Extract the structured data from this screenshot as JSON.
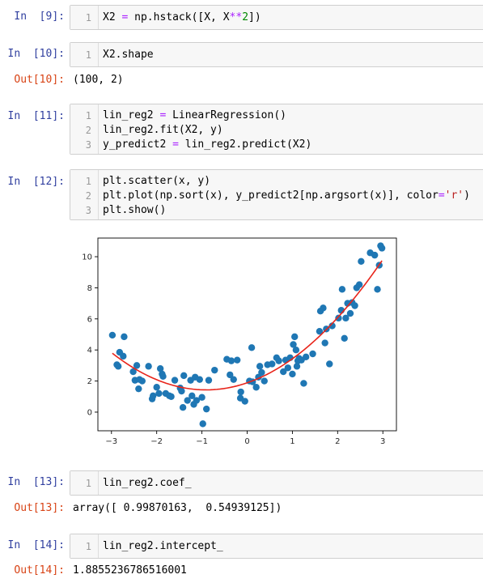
{
  "cells": [
    {
      "prompt": "In  [9]:",
      "lines": [
        {
          "num": "1",
          "tokens": [
            {
              "t": "X2 "
            },
            {
              "t": "=",
              "c": "op"
            },
            {
              "t": " np.hstack([X, X"
            },
            {
              "t": "**",
              "c": "op"
            },
            {
              "t": "2",
              "c": "num"
            },
            {
              "t": "])"
            }
          ]
        }
      ]
    },
    {
      "prompt": "In  [10]:",
      "lines": [
        {
          "num": "1",
          "tokens": [
            {
              "t": "X2.shape"
            }
          ]
        }
      ],
      "out_prompt": "Out[10]:",
      "output": "(100, 2)"
    },
    {
      "prompt": "In  [11]:",
      "lines": [
        {
          "num": "1",
          "tokens": [
            {
              "t": "lin_reg2 "
            },
            {
              "t": "=",
              "c": "op"
            },
            {
              "t": " LinearRegression()"
            }
          ]
        },
        {
          "num": "2",
          "tokens": [
            {
              "t": "lin_reg2.fit(X2, y)"
            }
          ]
        },
        {
          "num": "3",
          "tokens": [
            {
              "t": "y_predict2 "
            },
            {
              "t": "=",
              "c": "op"
            },
            {
              "t": " lin_reg2.predict(X2)"
            }
          ]
        }
      ]
    },
    {
      "prompt": "In  [12]:",
      "lines": [
        {
          "num": "1",
          "tokens": [
            {
              "t": "plt.scatter(x, y)"
            }
          ]
        },
        {
          "num": "2",
          "tokens": [
            {
              "t": "plt.plot(np.sort(x), y_predict2[np.argsort(x)], color"
            },
            {
              "t": "=",
              "c": "op"
            },
            {
              "t": "'r'",
              "c": "str"
            },
            {
              "t": ")"
            }
          ]
        },
        {
          "num": "3",
          "tokens": [
            {
              "t": "plt.show()"
            }
          ]
        }
      ]
    },
    {
      "prompt": "In  [13]:",
      "lines": [
        {
          "num": "1",
          "tokens": [
            {
              "t": "lin_reg2.coef_"
            }
          ]
        }
      ],
      "out_prompt": "Out[13]:",
      "output": "array([ 0.99870163,  0.54939125])"
    },
    {
      "prompt": "In  [14]:",
      "lines": [
        {
          "num": "1",
          "tokens": [
            {
              "t": "lin_reg2.intercept_"
            }
          ]
        }
      ],
      "out_prompt": "Out[14]:",
      "output": "1.8855236786516001"
    }
  ],
  "chart_data": {
    "type": "scatter",
    "xlim": [
      -3.3,
      3.3
    ],
    "ylim": [
      -1.2,
      11.2
    ],
    "xticks": [
      "−3",
      "−2",
      "−1",
      "0",
      "1",
      "2",
      "3"
    ],
    "yticks": [
      "0",
      "2",
      "4",
      "6",
      "8",
      "10"
    ],
    "grid": false,
    "scatter_color": "#1f77b4",
    "line_color": "#e8241a",
    "points": [
      [
        -2.98,
        4.95
      ],
      [
        -2.88,
        3.05
      ],
      [
        -2.85,
        2.95
      ],
      [
        -2.82,
        3.85
      ],
      [
        -2.74,
        3.6
      ],
      [
        -2.72,
        4.85
      ],
      [
        -2.52,
        2.6
      ],
      [
        -2.48,
        2.05
      ],
      [
        -2.44,
        3.0
      ],
      [
        -2.4,
        1.5
      ],
      [
        -2.38,
        2.1
      ],
      [
        -2.32,
        2.0
      ],
      [
        -2.18,
        2.95
      ],
      [
        -2.1,
        0.85
      ],
      [
        -2.08,
        1.05
      ],
      [
        -2.0,
        1.6
      ],
      [
        -1.95,
        1.2
      ],
      [
        -1.92,
        2.8
      ],
      [
        -1.88,
        2.45
      ],
      [
        -1.86,
        2.3
      ],
      [
        -1.8,
        1.2
      ],
      [
        -1.72,
        1.05
      ],
      [
        -1.68,
        1.0
      ],
      [
        -1.6,
        2.05
      ],
      [
        -1.48,
        1.55
      ],
      [
        -1.45,
        1.35
      ],
      [
        -1.42,
        0.3
      ],
      [
        -1.4,
        2.35
      ],
      [
        -1.32,
        0.75
      ],
      [
        -1.25,
        2.05
      ],
      [
        -1.22,
        1.05
      ],
      [
        -1.18,
        0.5
      ],
      [
        -1.15,
        2.25
      ],
      [
        -1.12,
        0.75
      ],
      [
        -1.05,
        2.1
      ],
      [
        -1.0,
        0.95
      ],
      [
        -0.98,
        -0.75
      ],
      [
        -0.9,
        0.2
      ],
      [
        -0.85,
        2.05
      ],
      [
        -0.72,
        2.7
      ],
      [
        -0.45,
        3.4
      ],
      [
        -0.38,
        2.4
      ],
      [
        -0.35,
        3.3
      ],
      [
        -0.3,
        2.1
      ],
      [
        -0.22,
        3.35
      ],
      [
        -0.15,
        0.9
      ],
      [
        -0.14,
        1.3
      ],
      [
        -0.05,
        0.7
      ],
      [
        0.05,
        2.0
      ],
      [
        0.1,
        4.15
      ],
      [
        0.12,
        1.95
      ],
      [
        0.2,
        1.6
      ],
      [
        0.25,
        2.25
      ],
      [
        0.28,
        2.95
      ],
      [
        0.32,
        2.55
      ],
      [
        0.38,
        2.0
      ],
      [
        0.45,
        3.05
      ],
      [
        0.55,
        3.1
      ],
      [
        0.65,
        3.5
      ],
      [
        0.7,
        3.3
      ],
      [
        0.8,
        2.6
      ],
      [
        0.85,
        3.35
      ],
      [
        0.9,
        2.85
      ],
      [
        0.95,
        3.5
      ],
      [
        1.0,
        2.45
      ],
      [
        1.02,
        4.35
      ],
      [
        1.05,
        4.85
      ],
      [
        1.08,
        4.0
      ],
      [
        1.1,
        2.95
      ],
      [
        1.12,
        3.3
      ],
      [
        1.15,
        3.45
      ],
      [
        1.2,
        3.35
      ],
      [
        1.25,
        1.85
      ],
      [
        1.3,
        3.55
      ],
      [
        1.45,
        3.75
      ],
      [
        1.6,
        5.2
      ],
      [
        1.62,
        6.5
      ],
      [
        1.68,
        6.7
      ],
      [
        1.72,
        4.45
      ],
      [
        1.75,
        5.35
      ],
      [
        1.82,
        3.1
      ],
      [
        1.88,
        5.55
      ],
      [
        2.02,
        6.05
      ],
      [
        2.08,
        6.55
      ],
      [
        2.1,
        7.9
      ],
      [
        2.15,
        4.75
      ],
      [
        2.18,
        6.05
      ],
      [
        2.22,
        7.0
      ],
      [
        2.28,
        6.35
      ],
      [
        2.32,
        7.05
      ],
      [
        2.38,
        6.85
      ],
      [
        2.42,
        8.0
      ],
      [
        2.48,
        8.2
      ],
      [
        2.52,
        9.7
      ],
      [
        2.72,
        10.25
      ],
      [
        2.82,
        10.1
      ],
      [
        2.88,
        7.9
      ],
      [
        2.92,
        9.45
      ],
      [
        2.95,
        10.7
      ],
      [
        2.98,
        10.55
      ]
    ],
    "fit": {
      "intercept": 1.8855236786516,
      "coef": [
        0.99870163,
        0.54939125
      ],
      "x_range": [
        -2.98,
        2.98
      ]
    }
  }
}
